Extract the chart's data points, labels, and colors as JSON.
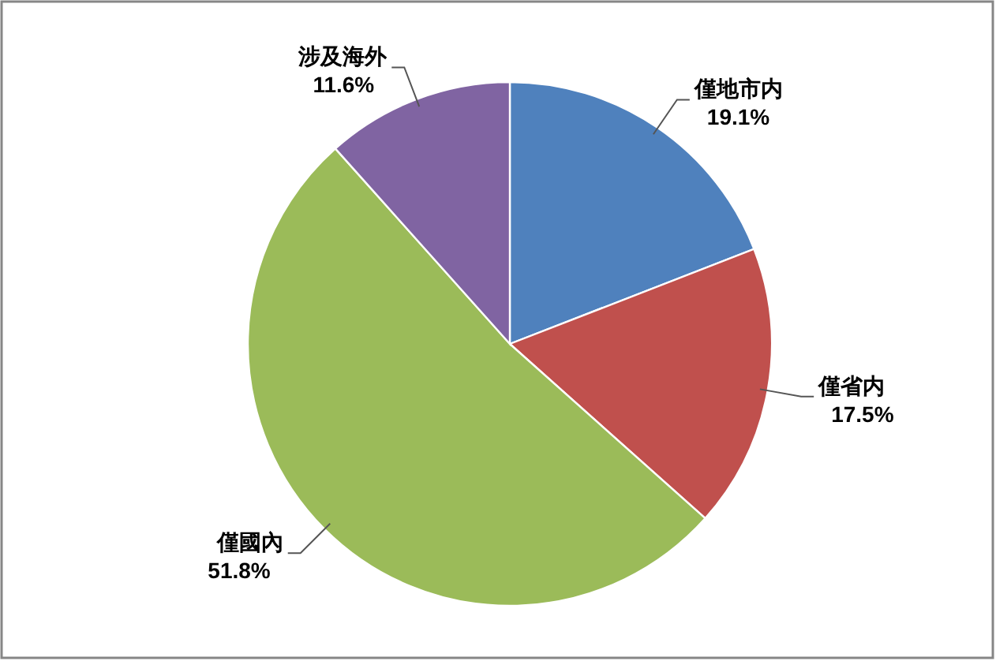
{
  "chart_data": {
    "type": "pie",
    "categories": [
      "僅地市内",
      "僅省内",
      "僅國內",
      "涉及海外"
    ],
    "values": [
      19.1,
      17.5,
      51.8,
      11.6
    ],
    "colors": [
      "#4f81bd",
      "#c0504d",
      "#9bbb59",
      "#8064a2"
    ],
    "value_labels": [
      "19.1%",
      "17.5%",
      "51.8%",
      "11.6%"
    ]
  }
}
